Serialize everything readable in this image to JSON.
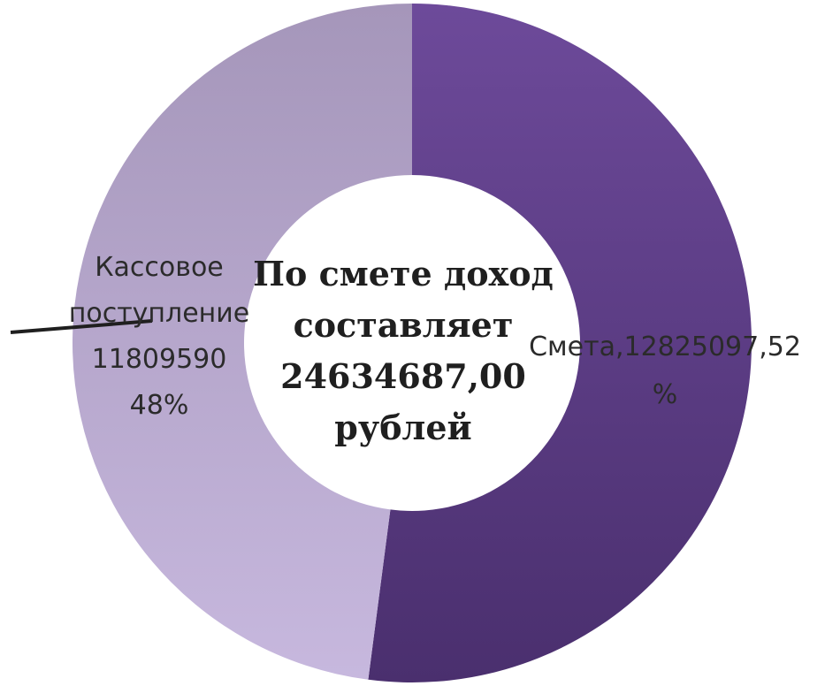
{
  "chart_data": {
    "type": "pie",
    "variant": "donut",
    "slices": [
      {
        "label_lines": [
          "Смета,12825097,52",
          "%"
        ],
        "value": 12825097,
        "percent": 52,
        "color": "#5e3d86"
      },
      {
        "label_lines": [
          "Кассовое",
          "поступление",
          "11809590",
          "48%"
        ],
        "value": 11809590,
        "percent": 48,
        "color": "#b9a8cf"
      }
    ],
    "center_text": [
      "По смете доход",
      "составляет",
      "24634687,00",
      "рублей"
    ]
  }
}
